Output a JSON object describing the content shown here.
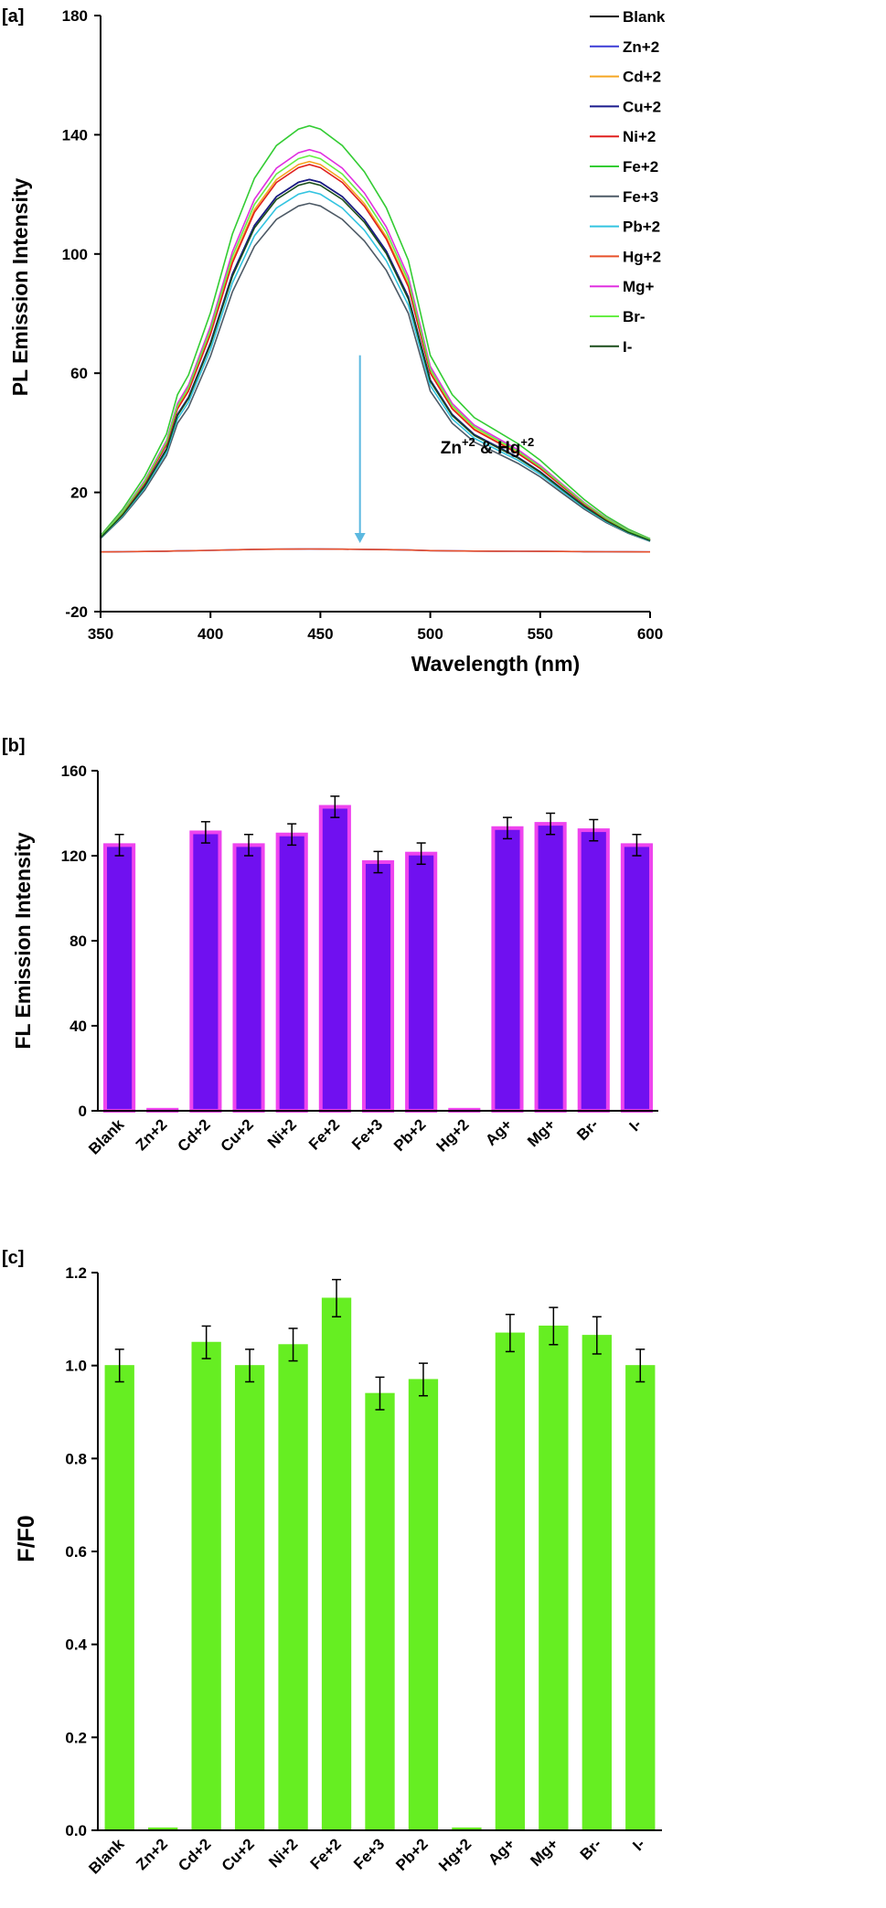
{
  "chart_data": [
    {
      "type": "line",
      "panel_label": "[a]",
      "xlabel": "Wavelength (nm)",
      "ylabel": "PL Emission Intensity",
      "xlim": [
        350,
        600
      ],
      "ylim": [
        -20,
        180
      ],
      "xticks": [
        "350",
        "400",
        "450",
        "500",
        "550",
        "600"
      ],
      "yticks": [
        "-20",
        "20",
        "60",
        "100",
        "140",
        "180"
      ],
      "annotation": {
        "text": "Zn & Hg",
        "ion1": "Zn",
        "ion1_sup": "+2",
        "sep": " & ",
        "ion2": "Hg",
        "ion2_sup": "+2",
        "arrow_x": 468,
        "arrow_y_from": 66,
        "arrow_y_to": 3
      },
      "legend_position": "top-right",
      "x": [
        350,
        360,
        370,
        380,
        385,
        390,
        400,
        410,
        420,
        430,
        440,
        445,
        450,
        460,
        470,
        480,
        490,
        500,
        510,
        520,
        530,
        540,
        550,
        560,
        570,
        580,
        590,
        600
      ],
      "profile": [
        0.0385,
        0.1,
        0.1769,
        0.2769,
        0.3692,
        0.4154,
        0.5615,
        0.7462,
        0.8769,
        0.9538,
        0.9923,
        1.0,
        0.9923,
        0.9538,
        0.8923,
        0.8077,
        0.6846,
        0.4615,
        0.3692,
        0.3154,
        0.2846,
        0.2538,
        0.2154,
        0.1692,
        0.1231,
        0.0846,
        0.0538,
        0.0308
      ],
      "baseline": 0,
      "series": [
        {
          "name": "Blank",
          "peak": 125,
          "color": "#000000"
        },
        {
          "name": "Zn+2",
          "peak": 1,
          "color": "#3b3bd6"
        },
        {
          "name": "Cd+2",
          "peak": 131,
          "color": "#f5a623"
        },
        {
          "name": "Cu+2",
          "peak": 125,
          "color": "#1a1a8c"
        },
        {
          "name": "Ni+2",
          "peak": 130,
          "color": "#e0201e"
        },
        {
          "name": "Fe+2",
          "peak": 143,
          "color": "#33cc33"
        },
        {
          "name": "Fe+3",
          "peak": 117,
          "color": "#4d5a66"
        },
        {
          "name": "Pb+2",
          "peak": 121,
          "color": "#33c4e0"
        },
        {
          "name": "Hg+2",
          "peak": 1,
          "color": "#e8502a"
        },
        {
          "name": "Mg+",
          "peak": 135,
          "color": "#e030e0"
        },
        {
          "name": "Br-",
          "peak": 133,
          "color": "#66ee44"
        },
        {
          "name": "I-",
          "peak": 124,
          "color": "#1a4d1a"
        }
      ]
    },
    {
      "type": "bar",
      "panel_label": "[b]",
      "xlabel": "",
      "ylabel": "FL Emission Intensity",
      "ylim": [
        0,
        160
      ],
      "yticks": [
        "0",
        "40",
        "80",
        "120",
        "160"
      ],
      "categories": [
        "Blank",
        "Zn+2",
        "Cd+2",
        "Cu+2",
        "Ni+2",
        "Fe+2",
        "Fe+3",
        "Pb+2",
        "Hg+2",
        "Ag+",
        "Mg+",
        "Br-",
        "I-"
      ],
      "values": [
        125,
        0.5,
        131,
        125,
        130,
        143,
        117,
        121,
        0.5,
        133,
        135,
        132,
        125
      ],
      "errors": [
        5,
        0,
        5,
        5,
        5,
        5,
        5,
        5,
        0,
        5,
        5,
        5,
        5
      ],
      "bar_color": "#7010f0",
      "edge_color": "#ee44ee"
    },
    {
      "type": "bar",
      "panel_label": "[c]",
      "xlabel": "",
      "ylabel": "F/F0",
      "ylim": [
        0,
        1.2
      ],
      "yticks": [
        "0.0",
        "0.2",
        "0.4",
        "0.6",
        "0.8",
        "1.0",
        "1.2"
      ],
      "categories": [
        "Blank",
        "Zn+2",
        "Cd+2",
        "Cu+2",
        "Ni+2",
        "Fe+2",
        "Fe+3",
        "Pb+2",
        "Hg+2",
        "Ag+",
        "Mg+",
        "Br-",
        "I-"
      ],
      "values": [
        1.0,
        0.005,
        1.05,
        1.0,
        1.045,
        1.145,
        0.94,
        0.97,
        0.005,
        1.07,
        1.085,
        1.065,
        1.0
      ],
      "errors": [
        0.035,
        0,
        0.035,
        0.035,
        0.035,
        0.04,
        0.035,
        0.035,
        0,
        0.04,
        0.04,
        0.04,
        0.035
      ],
      "bar_color": "#66ee22",
      "edge_color": "#66ee22"
    }
  ]
}
